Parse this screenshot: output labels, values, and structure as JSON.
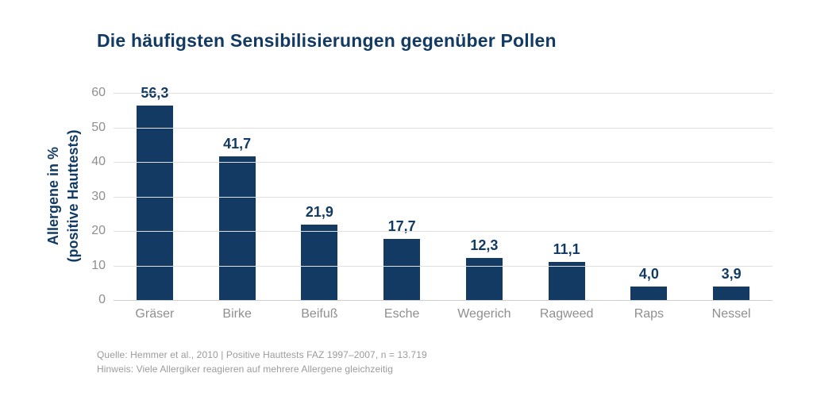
{
  "title": "Die häufigsten Sensibilisierungen gegenüber Pollen",
  "y_axis": {
    "label_line1": "Allergene in %",
    "label_line2": "(positive Hauttests)",
    "ticks": [
      0,
      10,
      20,
      30,
      40,
      50,
      60
    ]
  },
  "chart_data": {
    "type": "bar",
    "title": "Die häufigsten Sensibilisierungen gegenüber Pollen",
    "categories": [
      "Gräser",
      "Birke",
      "Beifuß",
      "Esche",
      "Wegerich",
      "Ragweed",
      "Raps",
      "Nessel"
    ],
    "values": [
      56.3,
      41.7,
      21.9,
      17.7,
      12.3,
      11.1,
      4.0,
      3.9
    ],
    "value_labels": [
      "56,3",
      "41,7",
      "21,9",
      "17,7",
      "12,3",
      "11,1",
      "4,0",
      "3,9"
    ],
    "xlabel": "",
    "ylabel": "Allergene in % (positive Hauttests)",
    "ylim": [
      0,
      60
    ],
    "grid": true,
    "legend": false
  },
  "footer": {
    "line1": "Quelle: Hemmer et al., 2010 | Positive Hauttests FAZ 1997–2007, n = 13.719",
    "line2": "Hinweis: Viele Allergiker reagieren auf mehrere Allergene gleichzeitig"
  },
  "colors": {
    "bar": "#123a63",
    "title_text": "#123a63",
    "value_text": "#123a63",
    "axis_text": "#8f8f8f",
    "gridline": "#e0e0e0",
    "baseline": "#cfcfcf",
    "footer_text": "#9b9b9b",
    "background": "#ffffff"
  }
}
